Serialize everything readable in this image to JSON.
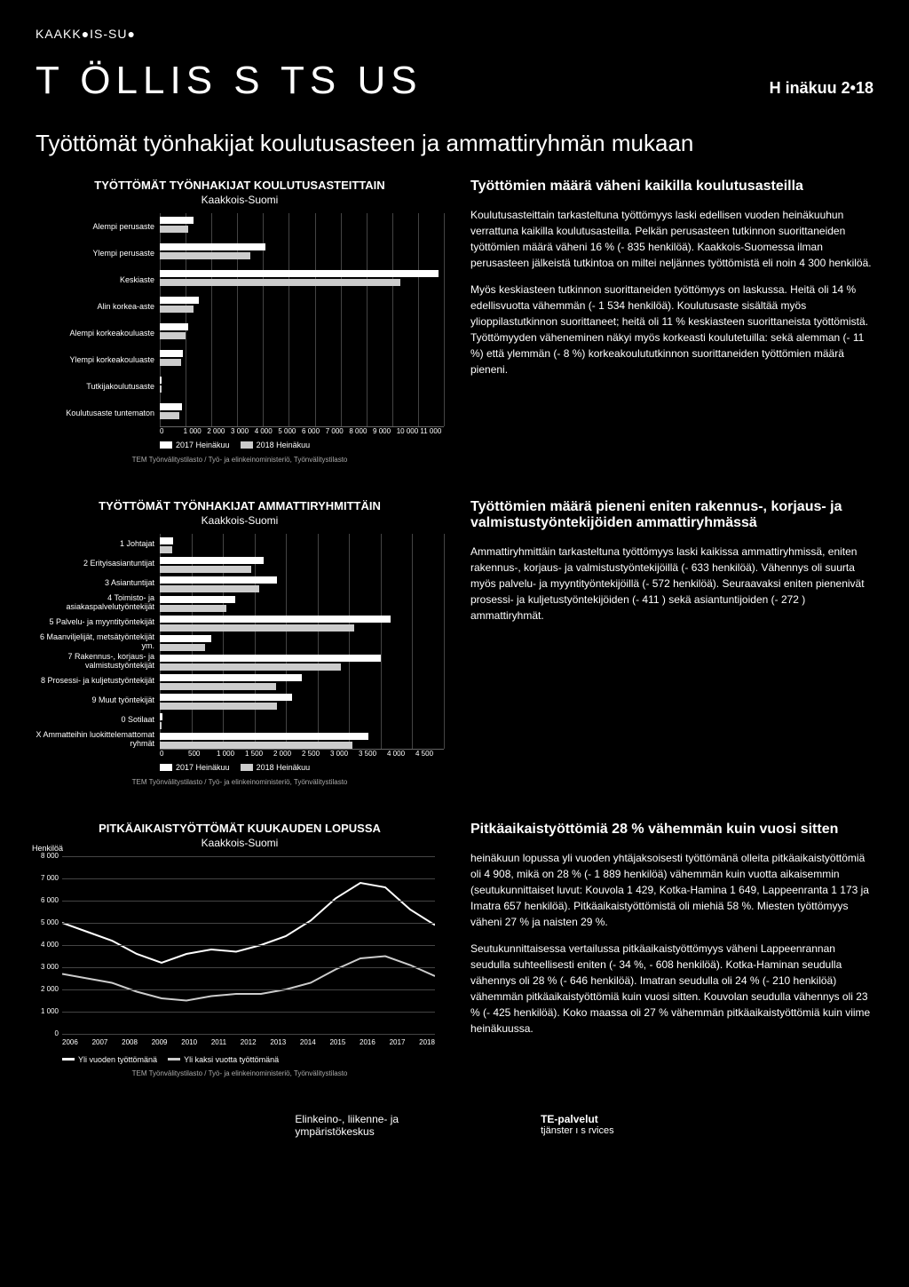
{
  "brand": "KAAKK●IS-SU●",
  "main_title": "T ÖLLIS   S   TS  US",
  "main_date": "H  inäkuu 2•18",
  "page_subtitle": "Työttömät työnhakijat koulutusasteen ja ammattiryhmän mukaan",
  "chart1": {
    "title": "TYÖTTÖMÄT TYÖNHAKIJAT KOULUTUSASTEITTAIN",
    "subtitle": "Kaakkois-Suomi",
    "xmax": 11000,
    "xtick_step": 1000,
    "xticks": [
      "0",
      "1 000",
      "2 000",
      "3 000",
      "4 000",
      "5 000",
      "6 000",
      "7 000",
      "8 000",
      "9 000",
      "10 000",
      "11 000"
    ],
    "categories": [
      "Alempi perusaste",
      "Ylempi perusaste",
      "Keskiaste",
      "Alin korkea-aste",
      "Alempi korkeakouluaste",
      "Ylempi korkeakouluaste",
      "Tutkijakoulutusaste",
      "Koulutusaste tuntematon"
    ],
    "series_2017": [
      1300,
      4100,
      10800,
      1500,
      1100,
      900,
      80,
      850
    ],
    "series_2018": [
      1100,
      3500,
      9300,
      1300,
      1000,
      830,
      70,
      770
    ],
    "legend": [
      "2017 Heinäkuu",
      "2018 Heinäkuu"
    ],
    "legend_colors": [
      "#ffffff",
      "#cccccc"
    ],
    "source": "TEM Työnvälitystilasto / Työ- ja elinkeinoministeriö, Työnvälitystilasto"
  },
  "text1": {
    "title": "Työttömien määrä väheni kaikilla koulutusasteilla",
    "p1": "Koulutusasteittain tarkasteltuna työttömyys laski edellisen vuoden heinäkuuhun verrattuna kaikilla koulutusasteilla. Pelkän perusasteen tutkinnon suorittaneiden työttömien määrä väheni 16 % (- 835 henkilöä). Kaakkois-Suomessa ilman perusasteen jälkeistä tutkintoa on miltei neljännes työttömistä eli noin 4 300 henkilöä.",
    "p2": "Myös keskiasteen tutkinnon suorittaneiden työttömyys on laskussa. Heitä oli 14 % edellisvuotta vähemmän (- 1 534 henkilöä). Koulutusaste sisältää myös ylioppilastutkinnon suorittaneet; heitä oli 11 % keskiasteen suorittaneista työttömistä. Työttömyyden väheneminen näkyi myös korkeasti koulutetuilla: sekä alemman (- 11 %) että ylemmän (- 8 %) korkeakoulututkinnon suorittaneiden työttömien määrä pieneni."
  },
  "chart2": {
    "title": "TYÖTTÖMÄT TYÖNHAKIJAT AMMATTIRYHMITTÄIN",
    "subtitle": "Kaakkois-Suomi",
    "xmax": 4500,
    "xtick_step": 500,
    "xticks": [
      "0",
      "500",
      "1 000",
      "1 500",
      "2 000",
      "2 500",
      "3 000",
      "3 500",
      "4 000",
      "4 500"
    ],
    "categories": [
      "1 Johtajat",
      "2 Erityisasiantuntijat",
      "3 Asiantuntijat",
      "4 Toimisto- ja asiakaspalvelutyöntekijät",
      "5 Palvelu- ja myyntityöntekijät",
      "6 Maanviljelijät, metsätyöntekijät ym.",
      "7 Rakennus-, korjaus- ja valmistustyöntekijät",
      "8 Prosessi- ja kuljetustyöntekijät",
      "9 Muut työntekijät",
      "0 Sotilaat",
      "X Ammatteihin luokittelemattomat ryhmät"
    ],
    "series_2017": [
      210,
      1650,
      1850,
      1200,
      3650,
      820,
      3500,
      2250,
      2100,
      40,
      3300
    ],
    "series_2018": [
      190,
      1450,
      1580,
      1050,
      3080,
      720,
      2870,
      1840,
      1850,
      35,
      3050
    ],
    "legend": [
      "2017 Heinäkuu",
      "2018 Heinäkuu"
    ],
    "legend_colors": [
      "#ffffff",
      "#cccccc"
    ],
    "source": "TEM Työnvälitystilasto / Työ- ja elinkeinoministeriö, Työnvälitystilasto"
  },
  "text2": {
    "title": "Työttömien määrä pieneni eniten rakennus-, korjaus- ja valmistustyöntekijöiden ammattiryhmässä",
    "p1": "Ammattiryhmittäin tarkasteltuna työttömyys laski kaikissa ammattiryhmissä, eniten rakennus-, korjaus- ja valmistustyöntekijöillä (- 633 henkilöä). Vähennys oli suurta myös palvelu- ja myyntityöntekijöillä (- 572 henkilöä). Seuraavaksi eniten pienenivät prosessi- ja kuljetustyöntekijöiden (- 411 ) sekä asiantuntijoiden (- 272 ) ammattiryhmät."
  },
  "chart3": {
    "title": "PITKÄAIKAISTYÖTTÖMÄT KUUKAUDEN LOPUSSA",
    "subtitle": "Kaakkois-Suomi",
    "ylabel": "Henkilöä",
    "ymax": 8000,
    "ytick_step": 1000,
    "yticks": [
      "0",
      "1 000",
      "2 000",
      "3 000",
      "4 000",
      "5 000",
      "6 000",
      "7 000",
      "8 000"
    ],
    "xyears": [
      "2006",
      "2007",
      "2008",
      "2009",
      "2010",
      "2011",
      "2012",
      "2013",
      "2014",
      "2015",
      "2016",
      "2017",
      "2018"
    ],
    "series1_label": "Yli vuoden työttömänä",
    "series2_label": "Yli kaksi vuotta työttömänä",
    "series1_points": [
      5000,
      4600,
      4200,
      3600,
      3200,
      3600,
      3800,
      3700,
      4000,
      4400,
      5100,
      6100,
      6800,
      6600,
      5600,
      4900
    ],
    "series2_points": [
      2700,
      2500,
      2300,
      1900,
      1600,
      1500,
      1700,
      1800,
      1800,
      2000,
      2300,
      2900,
      3400,
      3500,
      3100,
      2600
    ],
    "series1_color": "#ffffff",
    "series2_color": "#cccccc",
    "source": "TEM Työnvälitystilasto / Työ- ja elinkeinoministeriö, Työnvälitystilasto"
  },
  "text3": {
    "title": "Pitkäaikaistyöttömiä 28 % vähemmän kuin vuosi sitten",
    "p1": "heinäkuun lopussa yli vuoden yhtäjaksoisesti työttömänä olleita pitkäaikaistyöttömiä oli 4 908, mikä on 28 % (- 1 889 henkilöä) vähemmän kuin vuotta aikaisemmin (seutukunnittaiset luvut: Kouvola 1 429, Kotka-Hamina 1 649, Lappeenranta 1 173 ja Imatra 657 henkilöä). Pitkäaikaistyöttömistä oli miehiä 58 %. Miesten työttömyys väheni 27 % ja naisten 29 %.",
    "p2": "Seutukunnittaisessa vertailussa pitkäaikaistyöttömyys väheni Lappeenrannan seudulla suhteellisesti eniten (- 34 %, - 608 henkilöä). Kotka-Haminan seudulla vähennys oli 28 % (- 646 henkilöä). Imatran seudulla oli 24 % (- 210 henkilöä) vähemmän pitkäaikaistyöttömiä kuin vuosi sitten. Kouvolan seudulla vähennys oli 23 % (- 425 henkilöä). Koko maassa oli 27 % vähemmän pitkäaikaistyöttömiä kuin viime heinäkuussa."
  },
  "footer": {
    "left1": "Elinkeino-, liikenne- ja",
    "left2": "ympäristökeskus",
    "right1": "TE-palvelut",
    "right2": "tjänster ı s  rvices"
  }
}
